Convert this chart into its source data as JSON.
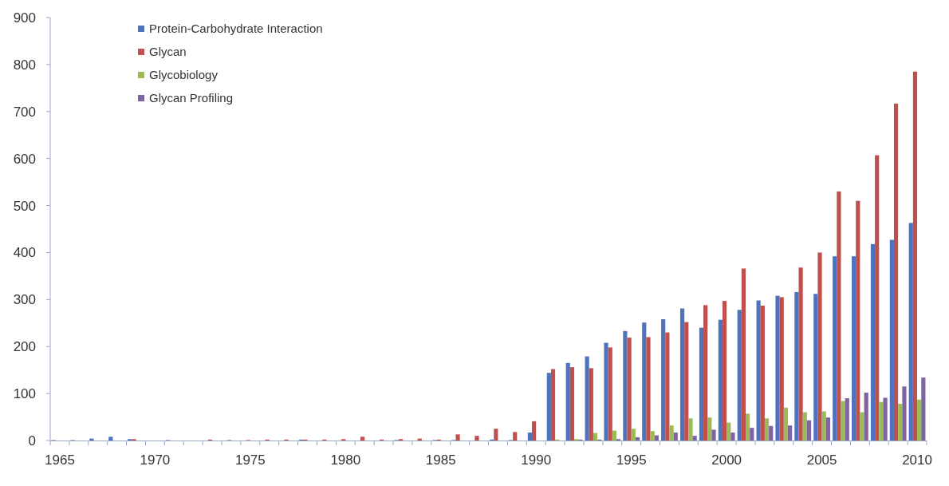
{
  "chart_data": {
    "type": "bar",
    "categories": [
      "1965",
      null,
      null,
      null,
      null,
      "1970",
      null,
      null,
      null,
      null,
      "1975",
      null,
      null,
      null,
      null,
      "1980",
      null,
      null,
      null,
      null,
      "1985",
      null,
      null,
      null,
      null,
      "1990",
      null,
      null,
      null,
      null,
      "1995",
      null,
      null,
      null,
      null,
      "2000",
      null,
      null,
      null,
      null,
      "2005",
      null,
      null,
      null,
      null,
      "2010"
    ],
    "series": [
      {
        "name": "Protein-Carbohydrate Interaction",
        "color": "#4f72bd",
        "values": [
          1,
          1,
          4,
          8,
          3,
          0,
          1,
          0,
          0,
          0,
          0,
          0,
          0,
          2,
          0,
          0,
          0,
          0,
          1,
          0,
          1,
          1,
          0,
          2,
          1,
          17,
          144,
          165,
          179,
          208,
          233,
          251,
          258,
          281,
          240,
          257,
          278,
          298,
          308,
          316,
          312,
          392,
          392,
          418,
          427,
          463
        ]
      },
      {
        "name": "Glycan",
        "color": "#c0504d",
        "values": [
          0,
          0,
          0,
          0,
          3,
          0,
          0,
          0,
          2,
          1,
          1,
          2,
          2,
          2,
          2,
          3,
          8,
          2,
          3,
          4,
          2,
          13,
          10,
          25,
          18,
          41,
          152,
          156,
          154,
          198,
          219,
          220,
          230,
          252,
          288,
          297,
          366,
          287,
          305,
          368,
          400,
          530,
          510,
          607,
          717,
          785
        ]
      },
      {
        "name": "Glycobiology",
        "color": "#9bbb59",
        "values": [
          0,
          0,
          0,
          0,
          0,
          0,
          0,
          0,
          0,
          0,
          0,
          0,
          0,
          0,
          0,
          0,
          0,
          0,
          0,
          0,
          0,
          0,
          0,
          0,
          0,
          0,
          2,
          3,
          16,
          21,
          25,
          20,
          32,
          47,
          49,
          38,
          57,
          47,
          70,
          60,
          62,
          84,
          60,
          82,
          78,
          87
        ]
      },
      {
        "name": "Glycan Profiling",
        "color": "#8064a2",
        "values": [
          0,
          0,
          0,
          0,
          0,
          0,
          0,
          0,
          0,
          0,
          0,
          0,
          0,
          0,
          0,
          0,
          0,
          0,
          0,
          0,
          0,
          0,
          0,
          0,
          0,
          0,
          0,
          2,
          2,
          3,
          7,
          11,
          17,
          10,
          23,
          17,
          27,
          31,
          32,
          43,
          49,
          90,
          102,
          91,
          115,
          134
        ]
      }
    ],
    "ylim": [
      0,
      900
    ],
    "yticks": [
      0,
      100,
      200,
      300,
      400,
      500,
      600,
      700,
      800,
      900
    ],
    "grid": false,
    "legend": "top left"
  }
}
